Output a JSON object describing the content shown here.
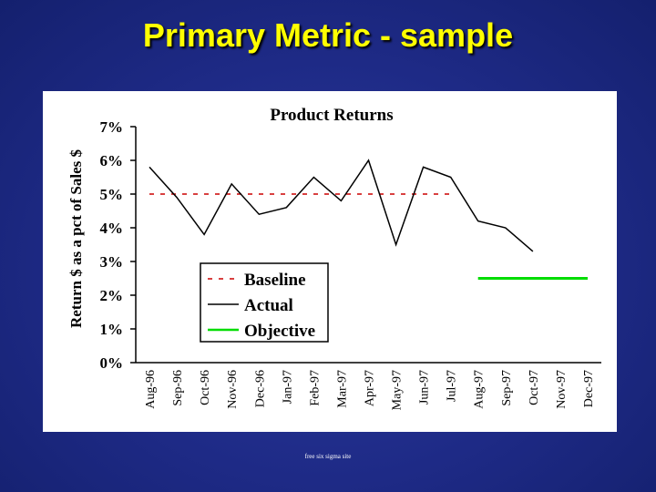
{
  "slide": {
    "title": "Primary Metric - sample",
    "footer": "free six sigma site"
  },
  "colors": {
    "background": "#1e2a86",
    "title": "#ffff00",
    "panel": "#ffffff",
    "baseline": "#cc0000",
    "actual": "#000000",
    "objective": "#00dd00"
  },
  "chart_data": {
    "type": "line",
    "title": "Product Returns",
    "xlabel": "",
    "ylabel": "Return $ as a pct of Sales $",
    "categories": [
      "Aug-96",
      "Sep-96",
      "Oct-96",
      "Nov-96",
      "Dec-96",
      "Jan-97",
      "Feb-97",
      "Mar-97",
      "Apr-97",
      "May-97",
      "Jun-97",
      "Jul-97",
      "Aug-97",
      "Sep-97",
      "Oct-97",
      "Nov-97",
      "Dec-97"
    ],
    "y_ticks": [
      "0%",
      "1%",
      "2%",
      "3%",
      "4%",
      "5%",
      "6%",
      "7%"
    ],
    "ylim": [
      0,
      7
    ],
    "grid": false,
    "legend_position": "bottom-left",
    "series": [
      {
        "name": "Baseline",
        "style": "dashed",
        "color": "#cc0000",
        "values": [
          5,
          5,
          5,
          5,
          5,
          5,
          5,
          5,
          5,
          5,
          5,
          5,
          null,
          null,
          null,
          null,
          null
        ]
      },
      {
        "name": "Actual",
        "style": "solid",
        "color": "#000000",
        "values": [
          5.8,
          4.9,
          3.8,
          5.3,
          4.4,
          4.6,
          5.5,
          4.8,
          6.0,
          3.5,
          5.8,
          5.5,
          4.2,
          4.0,
          3.3,
          null,
          null
        ]
      },
      {
        "name": "Objective",
        "style": "solid",
        "color": "#00dd00",
        "values": [
          null,
          null,
          null,
          null,
          null,
          null,
          null,
          null,
          null,
          null,
          null,
          null,
          2.5,
          2.5,
          2.5,
          2.5,
          2.5
        ]
      }
    ]
  }
}
